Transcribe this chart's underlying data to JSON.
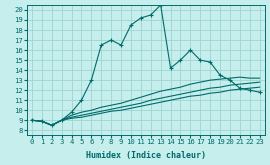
{
  "xlabel": "Humidex (Indice chaleur)",
  "bg_color": "#c5eeec",
  "grid_color": "#9ed4d2",
  "line_color": "#006b6b",
  "xlim": [
    -0.5,
    23.5
  ],
  "ylim": [
    7.5,
    20.5
  ],
  "xticks": [
    0,
    1,
    2,
    3,
    4,
    5,
    6,
    7,
    8,
    9,
    10,
    11,
    12,
    13,
    14,
    15,
    16,
    17,
    18,
    19,
    20,
    21,
    22,
    23
  ],
  "yticks": [
    8,
    9,
    10,
    11,
    12,
    13,
    14,
    15,
    16,
    17,
    18,
    19,
    20
  ],
  "main_x": [
    0,
    1,
    2,
    3,
    4,
    5,
    6,
    7,
    8,
    9,
    10,
    11,
    12,
    13,
    14,
    15,
    16,
    17,
    18,
    19,
    20,
    21,
    22,
    23
  ],
  "main_y": [
    9.0,
    8.9,
    8.5,
    9.0,
    9.8,
    11.0,
    13.0,
    16.5,
    17.0,
    16.5,
    18.5,
    19.2,
    19.5,
    20.5,
    14.2,
    15.0,
    16.0,
    15.0,
    14.8,
    13.5,
    13.0,
    12.2,
    12.0,
    11.8
  ],
  "line_upper_x": [
    0,
    1,
    2,
    3,
    4,
    5,
    6,
    7,
    8,
    9,
    10,
    11,
    12,
    13,
    14,
    15,
    16,
    17,
    18,
    19,
    20,
    21,
    22,
    23
  ],
  "line_upper_y": [
    9.0,
    8.9,
    8.5,
    9.0,
    9.5,
    9.8,
    10.0,
    10.3,
    10.5,
    10.7,
    11.0,
    11.3,
    11.6,
    11.9,
    12.1,
    12.3,
    12.6,
    12.8,
    13.0,
    13.1,
    13.2,
    13.3,
    13.2,
    13.2
  ],
  "line_mid_x": [
    0,
    1,
    2,
    3,
    4,
    5,
    6,
    7,
    8,
    9,
    10,
    11,
    12,
    13,
    14,
    15,
    16,
    17,
    18,
    19,
    20,
    21,
    22,
    23
  ],
  "line_mid_y": [
    9.0,
    8.9,
    8.5,
    9.0,
    9.3,
    9.5,
    9.7,
    9.9,
    10.1,
    10.3,
    10.5,
    10.7,
    11.0,
    11.2,
    11.4,
    11.6,
    11.8,
    12.0,
    12.2,
    12.3,
    12.5,
    12.6,
    12.7,
    12.8
  ],
  "line_low_x": [
    0,
    1,
    2,
    3,
    4,
    5,
    6,
    7,
    8,
    9,
    10,
    11,
    12,
    13,
    14,
    15,
    16,
    17,
    18,
    19,
    20,
    21,
    22,
    23
  ],
  "line_low_y": [
    9.0,
    8.9,
    8.5,
    9.0,
    9.2,
    9.3,
    9.5,
    9.7,
    9.9,
    10.0,
    10.2,
    10.4,
    10.6,
    10.8,
    11.0,
    11.2,
    11.4,
    11.5,
    11.7,
    11.8,
    12.0,
    12.1,
    12.2,
    12.3
  ]
}
